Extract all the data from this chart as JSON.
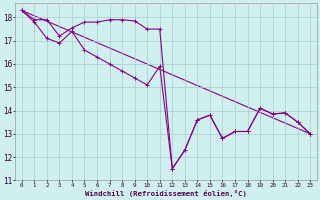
{
  "xlabel": "Windchill (Refroidissement éolien,°C)",
  "bg_color": "#cff0ee",
  "grid_color": "#aacccc",
  "line_color": "#880088",
  "ylim": [
    11,
    18.6
  ],
  "xlim": [
    -0.5,
    23.5
  ],
  "yticks": [
    11,
    12,
    13,
    14,
    15,
    16,
    17,
    18
  ],
  "xticks": [
    0,
    1,
    2,
    3,
    4,
    5,
    6,
    7,
    8,
    9,
    10,
    11,
    12,
    13,
    14,
    15,
    16,
    17,
    18,
    19,
    20,
    21,
    22,
    23
  ],
  "line1_x": [
    0,
    1,
    2,
    3,
    4,
    5,
    6,
    7,
    8,
    9,
    10,
    11,
    12,
    13,
    14,
    15,
    16,
    17,
    18,
    19,
    20,
    21,
    22,
    23
  ],
  "line1_y": [
    18.3,
    17.9,
    17.9,
    17.2,
    17.55,
    17.8,
    17.8,
    17.9,
    17.9,
    17.85,
    17.5,
    17.5,
    11.5,
    12.3,
    13.6,
    13.8,
    12.8,
    13.1,
    13.1,
    14.1,
    13.85,
    13.9,
    13.5,
    13.0
  ],
  "line2_x": [
    0,
    1,
    2,
    3,
    4,
    5,
    6,
    7,
    8,
    9,
    10,
    11,
    12,
    13,
    14,
    15,
    16,
    17,
    18,
    19,
    20,
    21,
    22,
    23
  ],
  "line2_y": [
    18.3,
    17.8,
    17.1,
    16.9,
    17.4,
    16.6,
    16.3,
    16.0,
    15.7,
    15.4,
    15.1,
    15.9,
    11.5,
    12.3,
    13.6,
    13.8,
    12.8,
    13.1,
    13.1,
    14.1,
    13.85,
    13.9,
    13.5,
    13.0
  ],
  "line3_x": [
    0,
    23
  ],
  "line3_y": [
    18.3,
    13.0
  ],
  "markersize": 2.5,
  "linewidth": 0.8
}
